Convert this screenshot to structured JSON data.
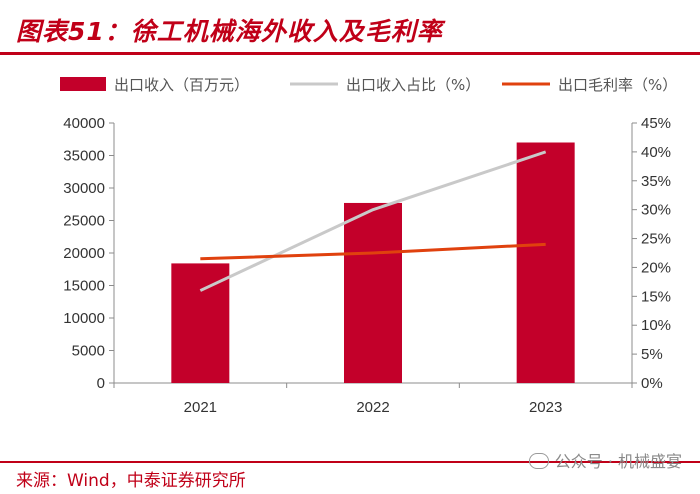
{
  "header": {
    "title": "图表51：徐工机械海外收入及毛利率"
  },
  "footer": {
    "source": "来源：Wind，中泰证券研究所",
    "watermark": "公众号 · 机械盛宴"
  },
  "colors": {
    "bar": "#c3002a",
    "share_line": "#c9c9c9",
    "margin_line": "#e0410e",
    "accent": "#c00018"
  },
  "chart_data": {
    "type": "bar",
    "categories": [
      "2021",
      "2022",
      "2023"
    ],
    "series": [
      {
        "name": "出口收入（百万元）",
        "type": "bar",
        "axis": "left",
        "values": [
          18400,
          27700,
          37000
        ]
      },
      {
        "name": "出口收入占比（%）",
        "type": "line",
        "axis": "right",
        "values": [
          16,
          30,
          40
        ]
      },
      {
        "name": "出口毛利率（%）",
        "type": "line",
        "axis": "right",
        "values": [
          21.5,
          22.5,
          24
        ]
      }
    ],
    "left_axis": {
      "ylim": [
        0,
        40000
      ],
      "ticks": [
        "0",
        "5000",
        "10000",
        "15000",
        "20000",
        "25000",
        "30000",
        "35000",
        "40000"
      ]
    },
    "right_axis": {
      "ylim": [
        0,
        45
      ],
      "ticks": [
        "0%",
        "5%",
        "10%",
        "15%",
        "20%",
        "25%",
        "30%",
        "35%",
        "40%",
        "45%"
      ]
    },
    "grid": false,
    "legend": "top"
  }
}
